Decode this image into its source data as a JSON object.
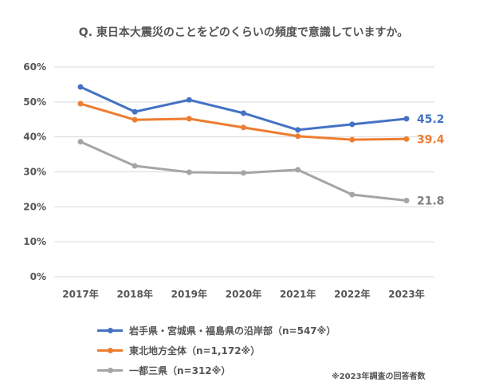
{
  "chart_data": {
    "type": "line",
    "title": "Q. 東日本大震災のことをどのくらいの頻度で意識していますか。",
    "categories": [
      "2017年",
      "2018年",
      "2019年",
      "2020年",
      "2021年",
      "2022年",
      "2023年"
    ],
    "ylim": [
      0,
      60
    ],
    "yticks": [
      "0%",
      "10%",
      "20%",
      "30%",
      "40%",
      "50%",
      "60%"
    ],
    "grid": true,
    "legend_position": "bottom-left",
    "series": [
      {
        "name": "岩手県・宮城県・福島県の沿岸部（n=547※）",
        "color": "#4472C4",
        "values": [
          54.3,
          47.2,
          50.6,
          46.8,
          42.0,
          43.6,
          45.2
        ],
        "end_label": "45.2"
      },
      {
        "name": "東北地方全体（n=1,172※）",
        "color": "#ED7D31",
        "values": [
          49.5,
          44.9,
          45.2,
          42.7,
          40.2,
          39.2,
          39.4
        ],
        "end_label": "39.4"
      },
      {
        "name": "一都三県（n=312※）",
        "color": "#A5A5A5",
        "values": [
          38.6,
          31.7,
          29.9,
          29.7,
          30.6,
          23.5,
          21.8
        ],
        "end_label": "21.8"
      }
    ],
    "note": "※2023年調査の回答者数"
  }
}
